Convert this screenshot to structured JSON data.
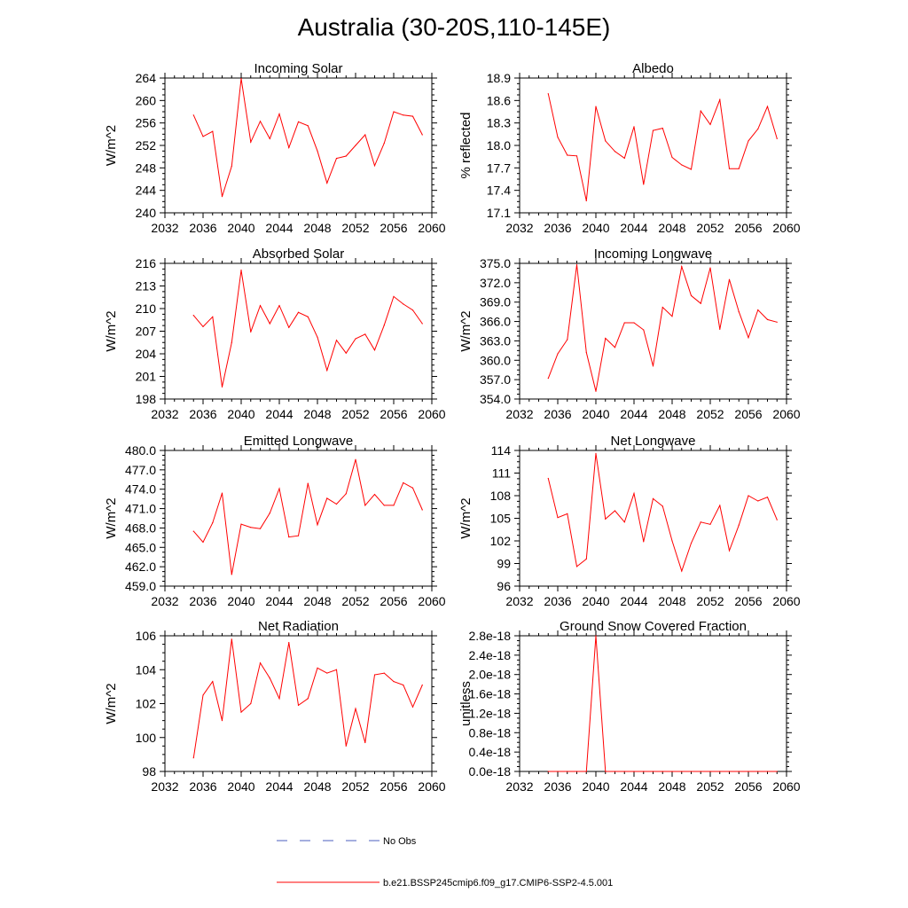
{
  "title": "Australia (30-20S,110-145E)",
  "legend": {
    "obs_label": "No Obs",
    "model_label": "b.e21.BSSP245cmip6.f09_g17.CMIP6-SSP2-4.5.001",
    "obs_color": "#4b5fbf",
    "model_color": "#ff0000"
  },
  "chart_data": [
    {
      "type": "line",
      "title": "Incoming Solar",
      "ylabel": "W/m^2",
      "xlim": [
        2032,
        2060
      ],
      "xticks": [
        "2032",
        "2036",
        "2040",
        "2044",
        "2048",
        "2052",
        "2056",
        "2060"
      ],
      "ylim": [
        240,
        264
      ],
      "yticks": [
        "240",
        "244",
        "248",
        "252",
        "256",
        "260",
        "264"
      ],
      "x": [
        2035,
        2036,
        2037,
        2038,
        2039,
        2040,
        2041,
        2042,
        2043,
        2044,
        2045,
        2046,
        2047,
        2048,
        2049,
        2050,
        2051,
        2052,
        2053,
        2054,
        2055,
        2056,
        2057,
        2058,
        2059
      ],
      "values": [
        257.4,
        253.6,
        254.5,
        242.9,
        248.3,
        263.9,
        252.6,
        256.3,
        253.2,
        257.6,
        251.6,
        256.2,
        255.5,
        251.0,
        245.3,
        249.7,
        250.1,
        252.0,
        253.9,
        248.4,
        252.4,
        258.0,
        257.4,
        257.2,
        253.9
      ]
    },
    {
      "type": "line",
      "title": "Albedo",
      "ylabel": "% reflected",
      "xlim": [
        2032,
        2060
      ],
      "xticks": [
        "2032",
        "2036",
        "2040",
        "2044",
        "2048",
        "2052",
        "2056",
        "2060"
      ],
      "ylim": [
        17.1,
        18.9
      ],
      "yticks": [
        "17.1",
        "17.4",
        "17.7",
        "18.0",
        "18.3",
        "18.6",
        "18.9"
      ],
      "x": [
        2035,
        2036,
        2037,
        2038,
        2039,
        2040,
        2041,
        2042,
        2043,
        2044,
        2045,
        2046,
        2047,
        2048,
        2049,
        2050,
        2051,
        2052,
        2053,
        2054,
        2055,
        2056,
        2057,
        2058,
        2059
      ],
      "values": [
        18.69,
        18.11,
        17.87,
        17.86,
        17.26,
        18.52,
        18.06,
        17.92,
        17.83,
        18.25,
        17.48,
        18.2,
        18.23,
        17.84,
        17.74,
        17.68,
        18.46,
        18.28,
        18.61,
        17.69,
        17.69,
        18.06,
        18.22,
        18.52,
        18.09
      ]
    },
    {
      "type": "line",
      "title": "Absorbed Solar",
      "ylabel": "W/m^2",
      "xlim": [
        2032,
        2060
      ],
      "xticks": [
        "2032",
        "2036",
        "2040",
        "2044",
        "2048",
        "2052",
        "2056",
        "2060"
      ],
      "ylim": [
        198,
        216
      ],
      "yticks": [
        "198",
        "201",
        "204",
        "207",
        "210",
        "213",
        "216"
      ],
      "x": [
        2035,
        2036,
        2037,
        2038,
        2039,
        2040,
        2041,
        2042,
        2043,
        2044,
        2045,
        2046,
        2047,
        2048,
        2049,
        2050,
        2051,
        2052,
        2053,
        2054,
        2055,
        2056,
        2057,
        2058,
        2059
      ],
      "values": [
        209.1,
        207.6,
        208.9,
        199.6,
        205.5,
        215.1,
        206.9,
        210.4,
        208.0,
        210.4,
        207.5,
        209.5,
        208.9,
        206.2,
        201.8,
        205.8,
        204.1,
        206.0,
        206.6,
        204.5,
        207.8,
        211.6,
        210.6,
        209.8,
        208.0
      ]
    },
    {
      "type": "line",
      "title": "Incoming Longwave",
      "ylabel": "W/m^2",
      "xlim": [
        2032,
        2060
      ],
      "xticks": [
        "2032",
        "2036",
        "2040",
        "2044",
        "2048",
        "2052",
        "2056",
        "2060"
      ],
      "ylim": [
        354.0,
        375.0
      ],
      "yticks": [
        "354.0",
        "357.0",
        "360.0",
        "363.0",
        "366.0",
        "369.0",
        "372.0",
        "375.0"
      ],
      "x": [
        2035,
        2036,
        2037,
        2038,
        2039,
        2040,
        2041,
        2042,
        2043,
        2044,
        2045,
        2046,
        2047,
        2048,
        2049,
        2050,
        2051,
        2052,
        2053,
        2054,
        2055,
        2056,
        2057,
        2058,
        2059
      ],
      "values": [
        357.2,
        361.0,
        363.2,
        374.8,
        361.2,
        355.2,
        363.4,
        362.0,
        365.8,
        365.8,
        364.7,
        359.1,
        368.2,
        366.8,
        374.5,
        370.0,
        368.8,
        374.3,
        364.8,
        372.5,
        367.5,
        363.5,
        367.8,
        366.3,
        365.9
      ]
    },
    {
      "type": "line",
      "title": "Emitted Longwave",
      "ylabel": "W/m^2",
      "xlim": [
        2032,
        2060
      ],
      "xticks": [
        "2032",
        "2036",
        "2040",
        "2044",
        "2048",
        "2052",
        "2056",
        "2060"
      ],
      "ylim": [
        459.0,
        480.0
      ],
      "yticks": [
        "459.0",
        "462.0",
        "465.0",
        "468.0",
        "471.0",
        "474.0",
        "477.0",
        "480.0"
      ],
      "x": [
        2035,
        2036,
        2037,
        2038,
        2039,
        2040,
        2041,
        2042,
        2043,
        2044,
        2045,
        2046,
        2047,
        2048,
        2049,
        2050,
        2051,
        2052,
        2053,
        2054,
        2055,
        2056,
        2057,
        2058,
        2059
      ],
      "values": [
        467.5,
        465.8,
        468.8,
        473.4,
        460.8,
        468.6,
        468.1,
        467.9,
        470.3,
        474.1,
        466.6,
        466.8,
        474.9,
        468.5,
        472.6,
        471.7,
        473.3,
        478.6,
        471.5,
        473.2,
        471.5,
        471.5,
        475.0,
        474.2,
        470.8
      ]
    },
    {
      "type": "line",
      "title": "Net Longwave",
      "ylabel": "W/m^2",
      "xlim": [
        2032,
        2060
      ],
      "xticks": [
        "2032",
        "2036",
        "2040",
        "2044",
        "2048",
        "2052",
        "2056",
        "2060"
      ],
      "ylim": [
        96,
        114
      ],
      "yticks": [
        "96",
        "99",
        "102",
        "105",
        "108",
        "111",
        "114"
      ],
      "x": [
        2035,
        2036,
        2037,
        2038,
        2039,
        2040,
        2041,
        2042,
        2043,
        2044,
        2045,
        2046,
        2047,
        2048,
        2049,
        2050,
        2051,
        2052,
        2053,
        2054,
        2055,
        2056,
        2057,
        2058,
        2059
      ],
      "values": [
        110.3,
        105.1,
        105.6,
        98.6,
        99.6,
        113.6,
        104.9,
        106.0,
        104.5,
        108.3,
        101.9,
        107.6,
        106.6,
        102.0,
        98.0,
        101.7,
        104.5,
        104.2,
        106.7,
        100.7,
        104.1,
        108.0,
        107.3,
        107.8,
        104.8
      ]
    },
    {
      "type": "line",
      "title": "Net Radiation",
      "ylabel": "W/m^2",
      "xlim": [
        2032,
        2060
      ],
      "xticks": [
        "2032",
        "2036",
        "2040",
        "2044",
        "2048",
        "2052",
        "2056",
        "2060"
      ],
      "ylim": [
        98,
        106
      ],
      "yticks": [
        "98",
        "100",
        "102",
        "104",
        "106"
      ],
      "x": [
        2035,
        2036,
        2037,
        2038,
        2039,
        2040,
        2041,
        2042,
        2043,
        2044,
        2045,
        2046,
        2047,
        2048,
        2049,
        2050,
        2051,
        2052,
        2053,
        2054,
        2055,
        2056,
        2057,
        2058,
        2059
      ],
      "values": [
        98.8,
        102.5,
        103.3,
        101.0,
        105.8,
        101.5,
        102.0,
        104.4,
        103.5,
        102.3,
        105.6,
        101.9,
        102.3,
        104.1,
        103.8,
        104.0,
        99.5,
        101.7,
        99.7,
        103.7,
        103.8,
        103.3,
        103.1,
        101.8,
        103.1
      ]
    },
    {
      "type": "line",
      "title": "Ground Snow Covered Fraction",
      "ylabel": "unitless",
      "xlim": [
        2032,
        2060
      ],
      "xticks": [
        "2032",
        "2036",
        "2040",
        "2044",
        "2048",
        "2052",
        "2056",
        "2060"
      ],
      "ylim": [
        0,
        2.8e-18
      ],
      "yticks": [
        "0.0e-18",
        "0.4e-18",
        "0.8e-18",
        "1.2e-18",
        "1.6e-18",
        "2.0e-18",
        "2.4e-18",
        "2.8e-18"
      ],
      "x": [
        2035,
        2036,
        2037,
        2038,
        2039,
        2040,
        2041,
        2042,
        2043,
        2044,
        2045,
        2046,
        2047,
        2048,
        2049,
        2050,
        2051,
        2052,
        2053,
        2054,
        2055,
        2056,
        2057,
        2058,
        2059
      ],
      "values": [
        0,
        0,
        0,
        0,
        0,
        2.8e-18,
        0,
        0,
        0,
        0,
        0,
        0,
        0,
        0,
        0,
        0,
        0,
        0,
        0,
        0,
        0,
        0,
        0,
        0,
        0
      ]
    }
  ]
}
